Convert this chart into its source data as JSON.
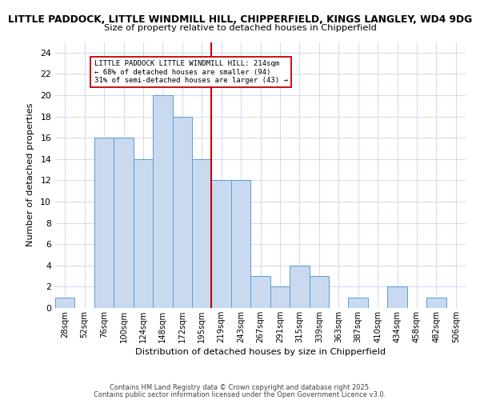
{
  "title_line1": "LITTLE PADDOCK, LITTLE WINDMILL HILL, CHIPPERFIELD, KINGS LANGLEY, WD4 9DG",
  "title_line2": "Size of property relative to detached houses in Chipperfield",
  "xlabel": "Distribution of detached houses by size in Chipperfield",
  "ylabel": "Number of detached properties",
  "bin_labels": [
    "28sqm",
    "52sqm",
    "76sqm",
    "100sqm",
    "124sqm",
    "148sqm",
    "172sqm",
    "195sqm",
    "219sqm",
    "243sqm",
    "267sqm",
    "291sqm",
    "315sqm",
    "339sqm",
    "363sqm",
    "387sqm",
    "410sqm",
    "434sqm",
    "458sqm",
    "482sqm",
    "506sqm"
  ],
  "bar_heights": [
    1,
    0,
    16,
    16,
    14,
    20,
    18,
    14,
    12,
    12,
    3,
    2,
    4,
    3,
    0,
    1,
    0,
    2,
    0,
    1,
    0
  ],
  "bar_color": "#c9d9f0",
  "bar_edge_color": "#5b9bd5",
  "vertical_line_x": 7.5,
  "vline_color": "#c00000",
  "annotation_line1": "LITTLE PADDOCK LITTLE WINDMILL HILL: 214sqm",
  "annotation_line2": "← 68% of detached houses are smaller (94)",
  "annotation_line3": "31% of semi-detached houses are larger (43) →",
  "annotation_box_color": "#c00000",
  "annotation_box_bg": "#ffffff",
  "ylim": [
    0,
    25
  ],
  "yticks": [
    0,
    2,
    4,
    6,
    8,
    10,
    12,
    14,
    16,
    18,
    20,
    22,
    24
  ],
  "footer_line1": "Contains HM Land Registry data © Crown copyright and database right 2025.",
  "footer_line2": "Contains public sector information licensed under the Open Government Licence v3.0.",
  "bg_color": "#ffffff",
  "grid_color": "#d4dded"
}
